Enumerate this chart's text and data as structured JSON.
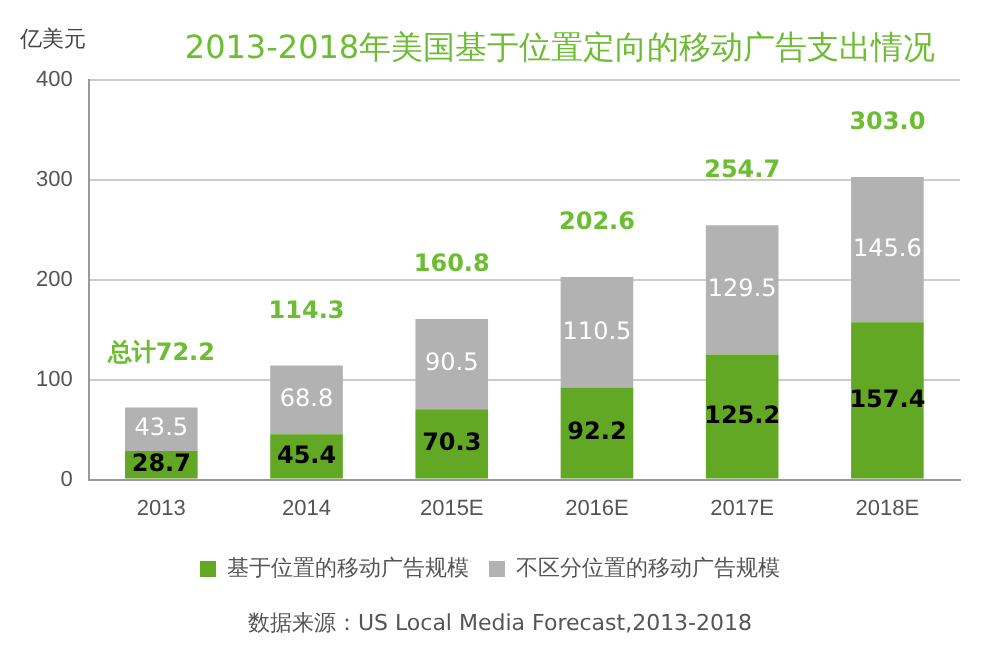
{
  "chart_data": {
    "type": "bar",
    "title": "2013-2018年美国基于位置定向的移动广告支出情况",
    "ylabel": "亿美元",
    "categories": [
      "2013",
      "2014",
      "2015E",
      "2016E",
      "2017E",
      "2018E"
    ],
    "stacked": true,
    "series": [
      {
        "name": "基于位置的移动广告规模",
        "color": "#62a825",
        "values": [
          28.7,
          45.4,
          70.3,
          92.2,
          125.2,
          157.4
        ]
      },
      {
        "name": "不区分位置的移动广告规模",
        "color": "#b2b2b2",
        "values": [
          43.5,
          68.8,
          90.5,
          110.5,
          129.5,
          145.6
        ]
      }
    ],
    "totals": [
      "总计72.2",
      "114.3",
      "160.8",
      "202.6",
      "254.7",
      "303.0"
    ],
    "data_labels": true,
    "ylim": [
      0,
      400
    ],
    "yticks": [
      0,
      100,
      200,
      300,
      400
    ],
    "grid": "y",
    "legend": "bottom",
    "annotations": [
      "数据来源：US Local Media Forecast,2013-2018"
    ]
  }
}
